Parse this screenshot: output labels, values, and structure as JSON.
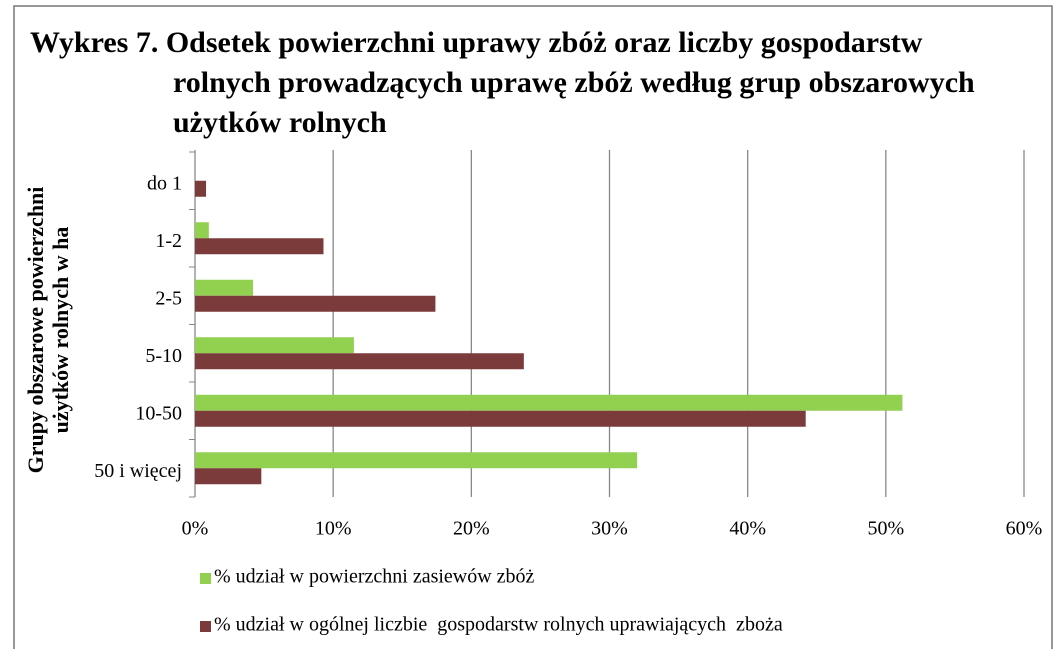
{
  "chart_data": {
    "type": "hbar",
    "title": [
      "Wykres 7. Odsetek powierzchni uprawy zbóż oraz liczby gospodarstw",
      "rolnych prowadzących uprawę zbóż według grup obszarowych",
      "użytków rolnych"
    ],
    "y_label": [
      "Grupy obszarowe powierzchni",
      "użytków rolnych w ha"
    ],
    "categories": [
      "do 1",
      "1-2",
      "2-5",
      "5-10",
      "10-50",
      "50 i więcej"
    ],
    "series": [
      {
        "name": "% udział w powierzchni zasiewów zbóż",
        "color": "#92d050",
        "values": [
          0,
          1.0,
          4.2,
          11.5,
          51.2,
          32.0
        ]
      },
      {
        "name": "% udział w ogólnej liczbie  gospodarstw rolnych uprawiających  zboża",
        "color": "#7b3b3b",
        "values": [
          0.8,
          9.3,
          17.4,
          23.8,
          44.2,
          4.8
        ]
      }
    ],
    "xlim": [
      0,
      60
    ],
    "xticks": [
      {
        "value": 0,
        "label": "0%"
      },
      {
        "value": 10,
        "label": "10%"
      },
      {
        "value": 20,
        "label": "20%"
      },
      {
        "value": 30,
        "label": "30%"
      },
      {
        "value": 40,
        "label": "40%"
      },
      {
        "value": 50,
        "label": "50%"
      },
      {
        "value": 60,
        "label": "60%"
      }
    ],
    "grid": true,
    "legend": "bottom"
  }
}
